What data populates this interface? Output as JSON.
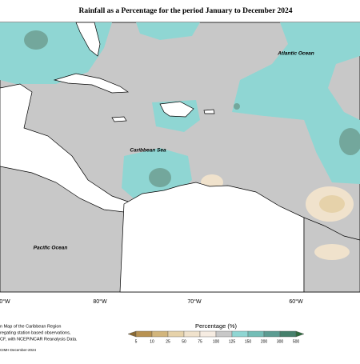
{
  "title": "Rainfall as a Percentage for the period January to December 2024",
  "labels": {
    "atlantic": "Atlantic Ocean",
    "caribbean": "Caribbean Sea",
    "pacific": "Pacific Ocean"
  },
  "longitudes": [
    "0°W",
    "80°W",
    "70°W",
    "60°W"
  ],
  "credits": [
    "n Map of the Caribbean Region",
    "regating station based observations,",
    "CF, with NCEP/NCAR Reanalysis Data.",
    "CIMH December-2024"
  ],
  "legend": {
    "title": "Percentage (%)",
    "ticks": [
      5,
      10,
      25,
      50,
      75,
      100,
      125,
      150,
      200,
      300,
      500
    ],
    "colors": [
      "#8a6a34",
      "#b89252",
      "#d2b57c",
      "#e6d2aa",
      "#f0e2cc",
      "#f6ece2",
      "#c8c8c8",
      "#8fd6d3",
      "#73bdb6",
      "#5c9c92",
      "#46806c",
      "#2f6b3e"
    ]
  }
}
